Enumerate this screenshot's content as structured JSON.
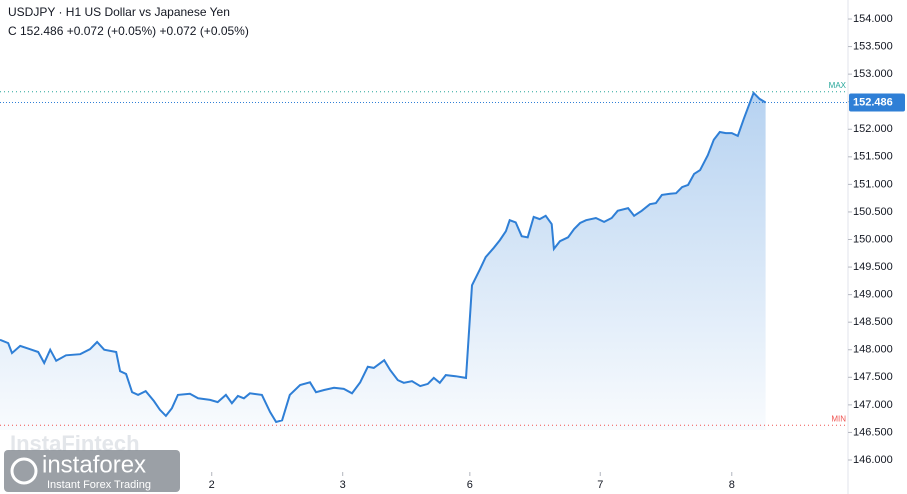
{
  "chart_data": {
    "type": "area",
    "title": "USDJPY · H1 US Dollar vs Japanese Yen",
    "subtitle": "C 152.486 +0.072 (+0.05%) +0.072 (+0.05%)",
    "watermark": "InstaFintech",
    "logo_name": "instaforex",
    "logo_tagline": "Instant Forex Trading",
    "color": "#2f7fd6",
    "x": [
      0,
      1.5,
      2.2,
      3.7,
      5.5,
      7,
      8.1,
      9.2,
      10.3,
      12.1,
      14.7,
      16.5,
      17.8,
      19.1,
      21.3,
      22,
      23.1,
      24.2,
      25.3,
      26.7,
      28.2,
      29.3,
      30.4,
      31.5,
      32.6,
      34.8,
      36.3,
      38.5,
      39.9,
      41.4,
      42.5,
      43.6,
      44.7,
      45.8,
      48,
      49.5,
      50.6,
      51.7,
      53.1,
      55,
      56.8,
      57.9,
      59.4,
      61.2,
      63,
      64.5,
      66,
      67.4,
      68.5,
      70.4,
      71.5,
      72.9,
      74,
      75.5,
      77,
      78.4,
      79.5,
      80.6,
      81.7,
      83.5,
      85.4,
      86.5,
      87.9,
      89,
      90.5,
      91.6,
      92.7,
      93.4,
      94.5,
      95.6,
      96.7,
      97.8,
      98.9,
      100,
      101.1,
      101.5,
      102.6,
      104.1,
      105.2,
      106.3,
      107.4,
      109.2,
      110.7,
      112.1,
      113.2,
      115.1,
      116.2,
      117.6,
      119.1,
      120.2,
      121.3,
      122.8,
      123.9,
      125,
      126.1,
      127.2,
      128.3,
      129.7,
      130.8,
      131.9,
      133,
      134.1,
      135.2,
      136.3,
      137.4,
      138.1,
      139.2,
      140.3
    ],
    "values": [
      148.18,
      148.12,
      147.94,
      148.07,
      148.01,
      147.96,
      147.76,
      148.0,
      147.8,
      147.9,
      147.92,
      148.01,
      148.14,
      148.0,
      147.96,
      147.61,
      147.56,
      147.23,
      147.18,
      147.25,
      147.07,
      146.91,
      146.8,
      146.94,
      147.18,
      147.2,
      147.12,
      147.09,
      147.05,
      147.18,
      147.03,
      147.16,
      147.12,
      147.21,
      147.18,
      146.87,
      146.69,
      146.72,
      147.18,
      147.36,
      147.41,
      147.23,
      147.27,
      147.31,
      147.29,
      147.21,
      147.41,
      147.69,
      147.67,
      147.81,
      147.63,
      147.45,
      147.4,
      147.43,
      147.34,
      147.38,
      147.49,
      147.4,
      147.54,
      147.52,
      147.49,
      149.17,
      149.45,
      149.68,
      149.85,
      149.99,
      150.15,
      150.35,
      150.31,
      150.06,
      150.04,
      150.41,
      150.37,
      150.43,
      150.28,
      149.83,
      149.97,
      150.04,
      150.19,
      150.3,
      150.35,
      150.39,
      150.32,
      150.39,
      150.52,
      150.57,
      150.43,
      150.52,
      150.64,
      150.66,
      150.81,
      150.83,
      150.84,
      150.95,
      150.99,
      151.19,
      151.26,
      151.53,
      151.81,
      151.95,
      151.93,
      151.93,
      151.88,
      152.19,
      152.48,
      152.66,
      152.55,
      152.486
    ],
    "xlim": [
      0,
      155.4
    ],
    "xticks": [
      {
        "value": 38.8,
        "label": "2"
      },
      {
        "value": 62.8,
        "label": "3"
      },
      {
        "value": 86.1,
        "label": "6"
      },
      {
        "value": 110,
        "label": "7"
      },
      {
        "value": 134.1,
        "label": "8"
      }
    ],
    "ylim": [
      145.383,
      154.345
    ],
    "yticks": [
      {
        "value": 146,
        "label": "146.000"
      },
      {
        "value": 146.5,
        "label": "146.500"
      },
      {
        "value": 147,
        "label": "147.000"
      },
      {
        "value": 147.5,
        "label": "147.500"
      },
      {
        "value": 148,
        "label": "148.000"
      },
      {
        "value": 148.5,
        "label": "148.500"
      },
      {
        "value": 149,
        "label": "149.000"
      },
      {
        "value": 149.5,
        "label": "149.500"
      },
      {
        "value": 150,
        "label": "150.000"
      },
      {
        "value": 150.5,
        "label": "150.500"
      },
      {
        "value": 151,
        "label": "151.000"
      },
      {
        "value": 151.5,
        "label": "151.500"
      },
      {
        "value": 152,
        "label": "152.000"
      },
      {
        "value": 152.5,
        "label": "152.500"
      },
      {
        "value": 153,
        "label": "153.000"
      },
      {
        "value": 153.5,
        "label": "153.500"
      },
      {
        "value": 154,
        "label": "154.000"
      }
    ],
    "last_price": 152.486,
    "max": {
      "value": 152.68,
      "label": "MAX",
      "color": "#26a69a"
    },
    "min": {
      "value": 146.63,
      "label": "MIN",
      "color": "#ef5350"
    },
    "grid": false
  }
}
